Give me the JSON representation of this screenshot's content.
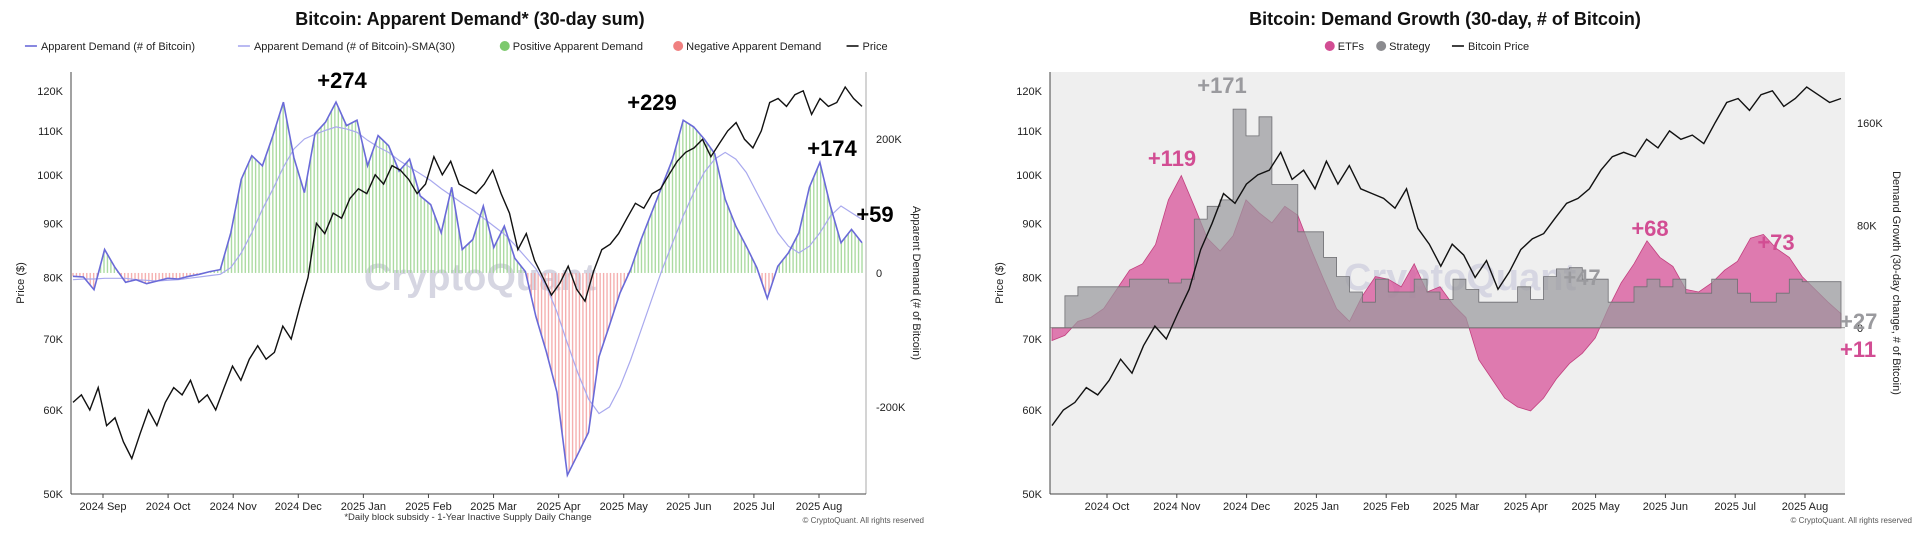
{
  "chart_data": [
    {
      "type": "line",
      "title": "Bitcoin: Apparent Demand* (30-day sum)",
      "legend": [
        {
          "label": "Apparent Demand (# of Bitcoin)",
          "color": "#6a6ad8",
          "kind": "line"
        },
        {
          "label": "Apparent Demand (# of Bitcoin)-SMA(30)",
          "color": "#a9a9ee",
          "kind": "line"
        },
        {
          "label": "Positive Apparent Demand",
          "color": "#7cc96d",
          "kind": "dot"
        },
        {
          "label": "Negative Apparent Demand",
          "color": "#f08080",
          "kind": "dot"
        },
        {
          "label": "Price",
          "color": "#111111",
          "kind": "line"
        }
      ],
      "x_ticks": [
        "2024 Sep",
        "2024 Oct",
        "2024 Nov",
        "2024 Dec",
        "2025 Jan",
        "2025 Feb",
        "2025 Mar",
        "2025 Apr",
        "2025 May",
        "2025 Jun",
        "2025 Jul",
        "2025 Aug"
      ],
      "y_left_ticks": [
        "120K",
        "110K",
        "100K",
        "90K",
        "80K",
        "70K",
        "60K",
        "50K"
      ],
      "y_right_ticks": [
        "200K",
        "0",
        "-200K"
      ],
      "ylabel_left": "Price ($)",
      "ylabel_right": "Apparent Demand (# of Bitcoin)",
      "annotations": [
        "+274",
        "+229",
        "+174",
        "+59"
      ],
      "watermark": "CryptoQuant",
      "footnote": "*Daily block subsidy - 1-Year Inactive Supply Daily Change",
      "copyright": "© CryptoQuant. All rights reserved",
      "demand_k": [
        -5,
        -6,
        -25,
        35,
        8,
        -14,
        -10,
        -16,
        -12,
        -8,
        -9,
        -5,
        -2,
        2,
        5,
        60,
        140,
        175,
        160,
        205,
        255,
        172,
        120,
        208,
        225,
        255,
        220,
        228,
        160,
        205,
        190,
        152,
        170,
        115,
        102,
        60,
        128,
        35,
        50,
        100,
        38,
        70,
        22,
        2,
        -65,
        -118,
        -178,
        -302,
        -270,
        -238,
        -125,
        -78,
        -30,
        5,
        50,
        90,
        130,
        170,
        228,
        218,
        200,
        178,
        110,
        70,
        40,
        8,
        -38,
        10,
        30,
        60,
        128,
        165,
        100,
        45,
        65,
        45
      ],
      "sma_k": [
        -10,
        -9,
        -9,
        -8,
        -8,
        -8,
        -10,
        -11,
        -12,
        -11,
        -10,
        -8,
        -6,
        -4,
        -2,
        8,
        30,
        60,
        95,
        125,
        158,
        185,
        200,
        207,
        213,
        218,
        215,
        210,
        198,
        188,
        180,
        168,
        158,
        148,
        138,
        126,
        115,
        104,
        94,
        82,
        70,
        58,
        42,
        24,
        6,
        -20,
        -58,
        -105,
        -150,
        -188,
        -210,
        -200,
        -170,
        -130,
        -85,
        -40,
        5,
        45,
        85,
        120,
        150,
        170,
        180,
        170,
        150,
        120,
        90,
        60,
        40,
        30,
        40,
        60,
        85,
        100,
        90,
        80
      ],
      "price_k": [
        61,
        62,
        60,
        63,
        58,
        59,
        56,
        54,
        57,
        60,
        58,
        61,
        63,
        62,
        64,
        61,
        62,
        60,
        63,
        66,
        64,
        67,
        69,
        67,
        68,
        72,
        70,
        75,
        80,
        90,
        88,
        92,
        91,
        95,
        97,
        96,
        100,
        98,
        102,
        101,
        99,
        96,
        98,
        104,
        100,
        103,
        98,
        97,
        96,
        98,
        101,
        96,
        92,
        85,
        88,
        83,
        80,
        77,
        79,
        82,
        78,
        76,
        81,
        85,
        86,
        88,
        91,
        94,
        93,
        96,
        97,
        100,
        103,
        105,
        106,
        108,
        104,
        107,
        110,
        112,
        108,
        106,
        110,
        117,
        118,
        116,
        119,
        120,
        114,
        118,
        116,
        117,
        121,
        118,
        116
      ],
      "ylim_left_k": [
        50,
        125
      ],
      "ylim_right_k": [
        -330,
        300
      ]
    },
    {
      "type": "area",
      "title": "Bitcoin: Demand Growth (30-day, # of Bitcoin)",
      "legend": [
        {
          "label": "ETFs",
          "color": "#d24d93",
          "kind": "dot"
        },
        {
          "label": "Strategy",
          "color": "#8b8b8f",
          "kind": "dot"
        },
        {
          "label": "Bitcoin Price",
          "color": "#111111",
          "kind": "line"
        }
      ],
      "x_ticks": [
        "2024 Oct",
        "2024 Nov",
        "2024 Dec",
        "2025 Jan",
        "2025 Feb",
        "2025 Mar",
        "2025 Apr",
        "2025 May",
        "2025 Jun",
        "2025 Jul",
        "2025 Aug"
      ],
      "y_left_ticks": [
        "120K",
        "110K",
        "100K",
        "90K",
        "80K",
        "70K",
        "60K",
        "50K"
      ],
      "y_right_ticks": [
        "160K",
        "80K",
        "0"
      ],
      "ylabel_left": "Price ($)",
      "ylabel_right": "Demand Growth (30-day change, # of Bitcoin)",
      "annotations": [
        {
          "text": "+119",
          "color": "#d24d93"
        },
        {
          "text": "+171",
          "color": "#9a9a9e"
        },
        {
          "text": "+68",
          "color": "#d24d93"
        },
        {
          "text": "+73",
          "color": "#d24d93"
        },
        {
          "text": "+47",
          "color": "#9a9a9e"
        },
        {
          "text": "+27",
          "color": "#9a9a9e"
        },
        {
          "text": "+11",
          "color": "#d24d93"
        }
      ],
      "watermark": "CryptoQuant",
      "copyright": "© CryptoQuant. All rights reserved",
      "etf_k": [
        -10,
        -6,
        5,
        8,
        15,
        30,
        45,
        50,
        65,
        100,
        119,
        95,
        70,
        60,
        72,
        100,
        90,
        82,
        95,
        88,
        62,
        38,
        15,
        5,
        25,
        40,
        38,
        32,
        50,
        28,
        32,
        18,
        8,
        -25,
        -40,
        -55,
        -62,
        -65,
        -55,
        -40,
        -28,
        -20,
        -8,
        15,
        35,
        50,
        68,
        55,
        48,
        30,
        28,
        35,
        45,
        52,
        70,
        73,
        62,
        55,
        40,
        30,
        20,
        11
      ],
      "strategy_k": [
        0,
        25,
        32,
        32,
        32,
        32,
        38,
        38,
        38,
        35,
        38,
        85,
        95,
        100,
        171,
        150,
        165,
        112,
        112,
        75,
        75,
        55,
        40,
        28,
        20,
        38,
        28,
        28,
        38,
        28,
        22,
        38,
        30,
        20,
        20,
        20,
        32,
        22,
        40,
        46,
        47,
        38,
        38,
        20,
        20,
        32,
        38,
        32,
        38,
        27,
        27,
        38,
        38,
        27,
        20,
        20,
        27,
        38,
        36,
        36,
        36,
        27
      ],
      "price_k": [
        58,
        60,
        61,
        63,
        62,
        64,
        67,
        65,
        69,
        72,
        70,
        74,
        78,
        85,
        90,
        96,
        94,
        98,
        100,
        101,
        105,
        99,
        101,
        97,
        103,
        98,
        102,
        97,
        96,
        95,
        93,
        97,
        89,
        86,
        82,
        86,
        84,
        80,
        83,
        78,
        81,
        85,
        87,
        88,
        91,
        94,
        95,
        97,
        101,
        104,
        105,
        104,
        108,
        106,
        110,
        108,
        109,
        107,
        112,
        117,
        118,
        115,
        119,
        120,
        116,
        118,
        121,
        119,
        117,
        118
      ],
      "ylim_left_k": [
        50,
        125
      ],
      "ylim_right_k": [
        -130,
        200
      ]
    }
  ]
}
